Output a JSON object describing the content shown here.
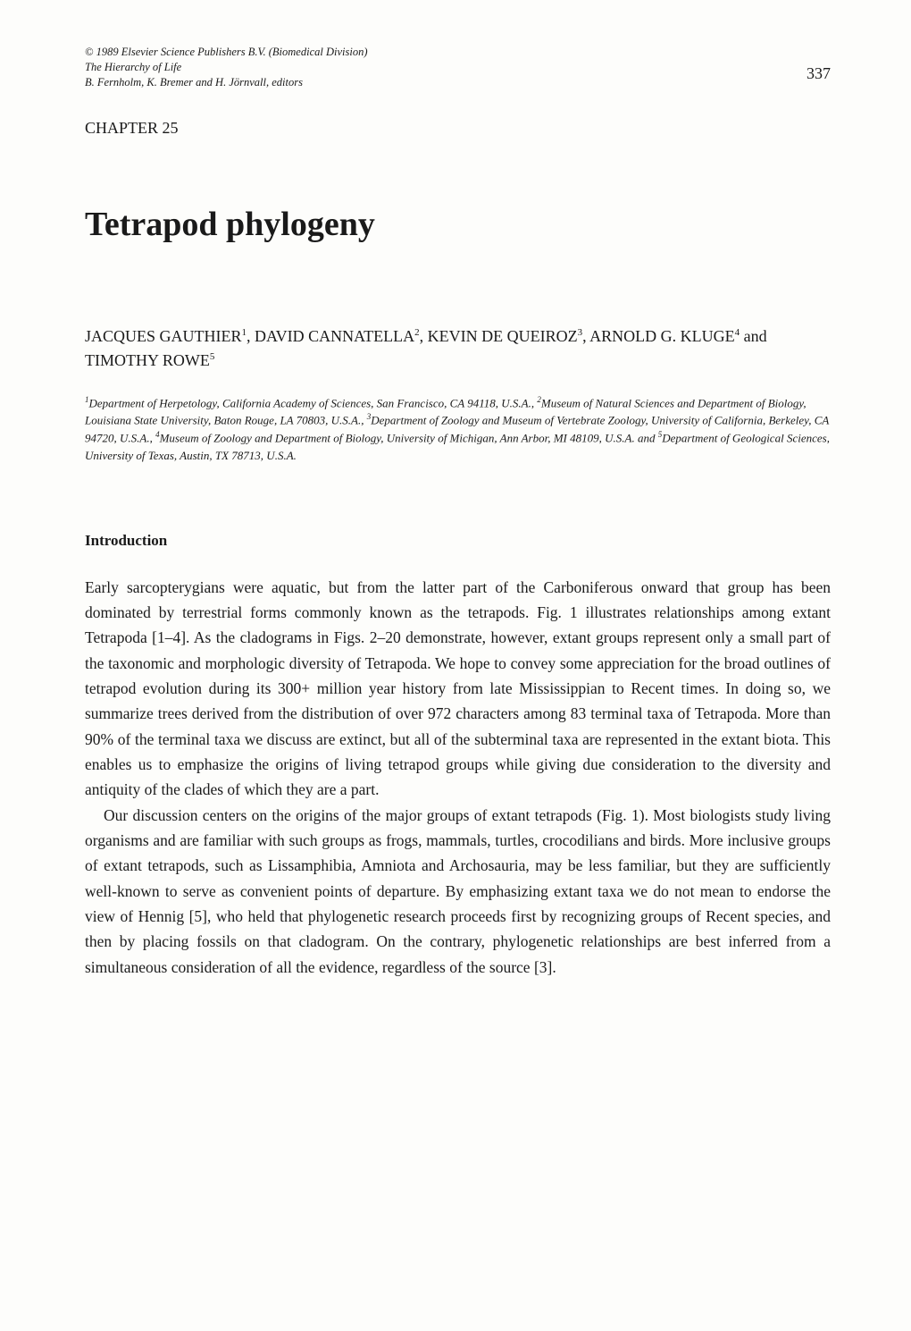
{
  "header": {
    "copyright": "© 1989 Elsevier Science Publishers B.V. (Biomedical Division)",
    "book_title": "The Hierarchy of Life",
    "editors": "B. Fernholm, K. Bremer and H. Jörnvall, editors",
    "page_number": "337"
  },
  "chapter": {
    "label": "CHAPTER 25",
    "title": "Tetrapod phylogeny"
  },
  "authors": {
    "prefix1": "JACQUES GAUTHIER",
    "sup1": "1",
    "sep1": ", DAVID CANNATELLA",
    "sup2": "2",
    "sep2": ", KEVIN DE QUEIROZ",
    "sup3": "3",
    "sep3": ", ARNOLD G. KLUGE",
    "sup4": "4",
    "sep4": " and TIMOTHY ROWE",
    "sup5": "5"
  },
  "affiliations": {
    "sup1": "1",
    "text1": "Department of Herpetology, California Academy of Sciences, San Francisco, CA 94118, U.S.A., ",
    "sup2": "2",
    "text2": "Museum of Natural Sciences and Department of Biology, Louisiana State University, Baton Rouge, LA 70803, U.S.A., ",
    "sup3": "3",
    "text3": "Department of Zoology and Museum of Vertebrate Zoology, University of California, Berkeley, CA 94720, U.S.A., ",
    "sup4": "4",
    "text4": "Museum of Zoology and Department of Biology, University of Michigan, Ann Arbor, MI 48109, U.S.A. and ",
    "sup5": "5",
    "text5": "Department of Geological Sciences, University of Texas, Austin, TX 78713, U.S.A."
  },
  "section": {
    "heading": "Introduction"
  },
  "body": {
    "p1": "Early sarcopterygians were aquatic, but from the latter part of the Carboniferous onward that group has been dominated by terrestrial forms commonly known as the tetrapods. Fig. 1 illustrates relationships among extant Tetrapoda [1–4]. As the cladograms in Figs. 2–20 demonstrate, however, extant groups represent only a small part of the taxonomic and morphologic diversity of Tetrapoda. We hope to convey some appreciation for the broad outlines of tetrapod evolution during its 300+ million year history from late Mississippian to Recent times. In doing so, we summarize trees derived from the distribution of over 972 characters among 83 terminal taxa of Tetrapoda. More than 90% of the terminal taxa we discuss are extinct, but all of the subterminal taxa are represented in the extant biota. This enables us to emphasize the origins of living tetrapod groups while giving due consideration to the diversity and antiquity of the clades of which they are a part.",
    "p2": "Our discussion centers on the origins of the major groups of extant tetrapods (Fig. 1). Most biologists study living organisms and are familiar with such groups as frogs, mammals, turtles, crocodilians and birds. More inclusive groups of extant tetrapods, such as Lissamphibia, Amniota and Archosauria, may be less familiar, but they are sufficiently well-known to serve as convenient points of departure. By emphasizing extant taxa we do not mean to endorse the view of Hennig [5], who held that phylogenetic research proceeds first by recognizing groups of Recent species, and then by placing fossils on that cladogram. On the contrary, phylogenetic relationships are best inferred from a simultaneous consideration of all the evidence, regardless of the source [3]."
  },
  "style": {
    "page_bg": "#fdfdfb",
    "text_color": "#1a1a1a",
    "body_fontsize": 17.5,
    "body_lineheight": 1.62,
    "title_fontsize": 38,
    "chapter_label_fontsize": 18,
    "authors_fontsize": 18,
    "affil_fontsize": 13,
    "heading_fontsize": 17,
    "pagenum_fontsize": 18,
    "header_fontsize": 12.5
  }
}
